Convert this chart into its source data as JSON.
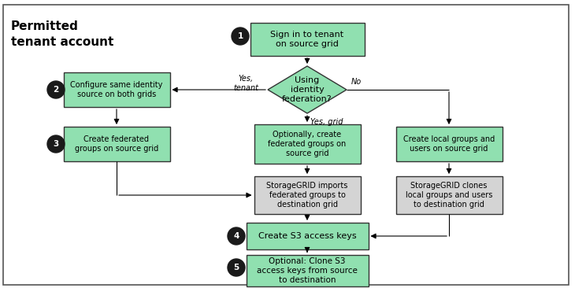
{
  "bg_color": "#ffffff",
  "green_fill": "#90e0b0",
  "gray_fill": "#d4d4d4",
  "title": "Permitted\ntenant account",
  "node1_text": "Sign in to tenant\non source grid",
  "diamond_text": "Using\nidentity\nfederation?",
  "node2_text": "Configure same identity\nsource on both grids",
  "node3_text": "Create federated\ngroups on source grid",
  "opt_text": "Optionally, create\nfederated groups on\nsource grid",
  "local_text": "Create local groups and\nusers on source grid",
  "sgi_text": "StorageGRID imports\nfederated groups to\ndestination grid",
  "sgc_text": "StorageGRID clones\nlocal groups and users\nto destination grid",
  "node4_text": "Create S3 access keys",
  "node5_text": "Optional: Clone S3\naccess keys from source\nto destination",
  "yes_tenant": "Yes,\ntenant",
  "yes_grid": "Yes, grid",
  "no_label": "No"
}
